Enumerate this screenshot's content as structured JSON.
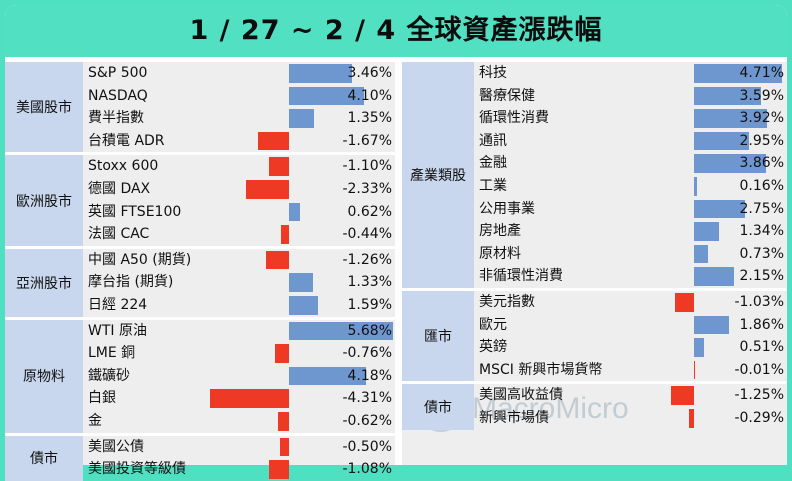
{
  "title": "1 / 27 ~ 2 / 4 全球資產漲跌幅",
  "watermark": "MacroMicro",
  "colors": {
    "positive": "#6f97cf",
    "negative": "#ee3a25",
    "group_bg": "#c8d7ee",
    "panel_bg": "#eeeeee",
    "title_bg": "#52e0c3"
  },
  "chart_data": [
    {
      "type": "bar",
      "panel": "left",
      "scale_max": 5.68,
      "groups": [
        {
          "name": "美國股市",
          "items": [
            {
              "label": "S&P 500",
              "value": 3.46,
              "text": "3.46%"
            },
            {
              "label": "NASDAQ",
              "value": 4.1,
              "text": "4.10%"
            },
            {
              "label": "費半指數",
              "value": 1.35,
              "text": "1.35%"
            },
            {
              "label": "台積電 ADR",
              "value": -1.67,
              "text": "-1.67%"
            }
          ]
        },
        {
          "name": "歐洲股市",
          "items": [
            {
              "label": "Stoxx 600",
              "value": -1.1,
              "text": "-1.10%"
            },
            {
              "label": "德國 DAX",
              "value": -2.33,
              "text": "-2.33%"
            },
            {
              "label": "英國 FTSE100",
              "value": 0.62,
              "text": "0.62%"
            },
            {
              "label": "法國 CAC",
              "value": -0.44,
              "text": "-0.44%"
            }
          ]
        },
        {
          "name": "亞洲股市",
          "items": [
            {
              "label": "中國 A50 (期貨)",
              "value": -1.26,
              "text": "-1.26%"
            },
            {
              "label": "摩台指 (期貨)",
              "value": 1.33,
              "text": "1.33%"
            },
            {
              "label": "日經 224",
              "value": 1.59,
              "text": "1.59%"
            }
          ]
        },
        {
          "name": "原物料",
          "items": [
            {
              "label": "WTI 原油",
              "value": 5.68,
              "text": "5.68%"
            },
            {
              "label": "LME 銅",
              "value": -0.76,
              "text": "-0.76%"
            },
            {
              "label": "鐵礦砂",
              "value": 4.18,
              "text": "4.18%"
            },
            {
              "label": "白銀",
              "value": -4.31,
              "text": "-4.31%"
            },
            {
              "label": "金",
              "value": -0.62,
              "text": "-0.62%"
            }
          ]
        },
        {
          "name": "債市",
          "items": [
            {
              "label": "美國公債",
              "value": -0.5,
              "text": "-0.50%"
            },
            {
              "label": "美國投資等級債",
              "value": -1.08,
              "text": "-1.08%"
            }
          ]
        }
      ]
    },
    {
      "type": "bar",
      "panel": "right",
      "scale_max": 4.71,
      "groups": [
        {
          "name": "產業類股",
          "items": [
            {
              "label": "科技",
              "value": 4.71,
              "text": "4.71%"
            },
            {
              "label": "醫療保健",
              "value": 3.59,
              "text": "3.59%"
            },
            {
              "label": "循環性消費",
              "value": 3.92,
              "text": "3.92%"
            },
            {
              "label": "通訊",
              "value": 2.95,
              "text": "2.95%"
            },
            {
              "label": "金融",
              "value": 3.86,
              "text": "3.86%"
            },
            {
              "label": "工業",
              "value": 0.16,
              "text": "0.16%"
            },
            {
              "label": "公用事業",
              "value": 2.75,
              "text": "2.75%"
            },
            {
              "label": "房地產",
              "value": 1.34,
              "text": "1.34%"
            },
            {
              "label": "原材料",
              "value": 0.73,
              "text": "0.73%"
            },
            {
              "label": "非循環性消費",
              "value": 2.15,
              "text": "2.15%"
            }
          ]
        },
        {
          "name": "匯市",
          "items": [
            {
              "label": "美元指數",
              "value": -1.03,
              "text": "-1.03%"
            },
            {
              "label": "歐元",
              "value": 1.86,
              "text": "1.86%"
            },
            {
              "label": "英鎊",
              "value": 0.51,
              "text": "0.51%"
            },
            {
              "label": "MSCI 新興市場貨幣",
              "value": -0.01,
              "text": "-0.01%"
            }
          ]
        },
        {
          "name": "債市",
          "items": [
            {
              "label": "美國高收益債",
              "value": -1.25,
              "text": "-1.25%"
            },
            {
              "label": "新興市場債",
              "value": -0.29,
              "text": "-0.29%"
            }
          ]
        }
      ]
    }
  ]
}
